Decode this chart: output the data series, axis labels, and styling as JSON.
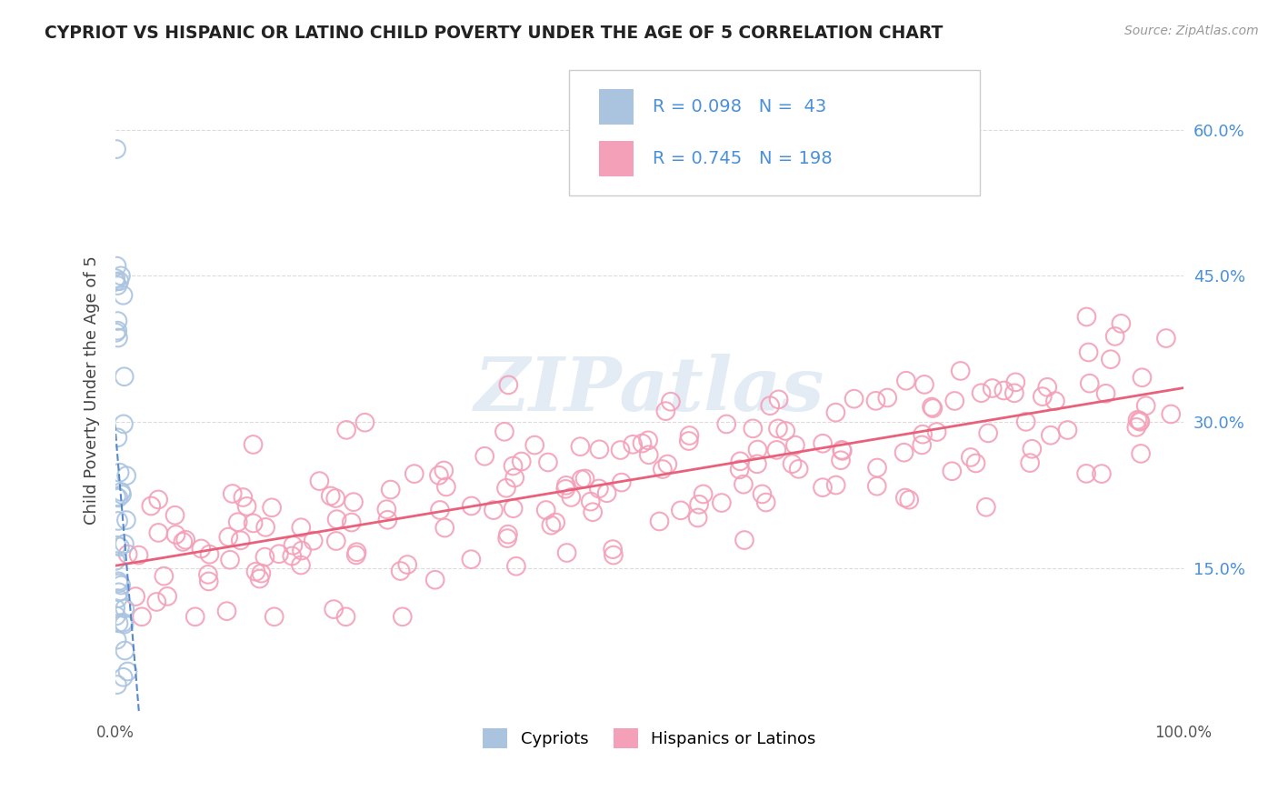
{
  "title": "CYPRIOT VS HISPANIC OR LATINO CHILD POVERTY UNDER THE AGE OF 5 CORRELATION CHART",
  "source": "Source: ZipAtlas.com",
  "ylabel": "Child Poverty Under the Age of 5",
  "xlim": [
    0,
    1.0
  ],
  "ylim": [
    0,
    0.665
  ],
  "ytick_positions": [
    0.15,
    0.3,
    0.45,
    0.6
  ],
  "ytick_labels": [
    "15.0%",
    "30.0%",
    "45.0%",
    "60.0%"
  ],
  "cypriot_color": "#aac4e0",
  "hispanic_color": "#f4a0b8",
  "trend_cypriot_color": "#5588cc",
  "trend_hispanic_color": "#e8607a",
  "bg_color": "#ffffff",
  "grid_color": "#cccccc",
  "legend_label1": "Cypriots",
  "legend_label2": "Hispanics or Latinos",
  "watermark": "ZIPatlas",
  "tick_color": "#4a90d9",
  "title_color": "#222222",
  "source_color": "#999999"
}
